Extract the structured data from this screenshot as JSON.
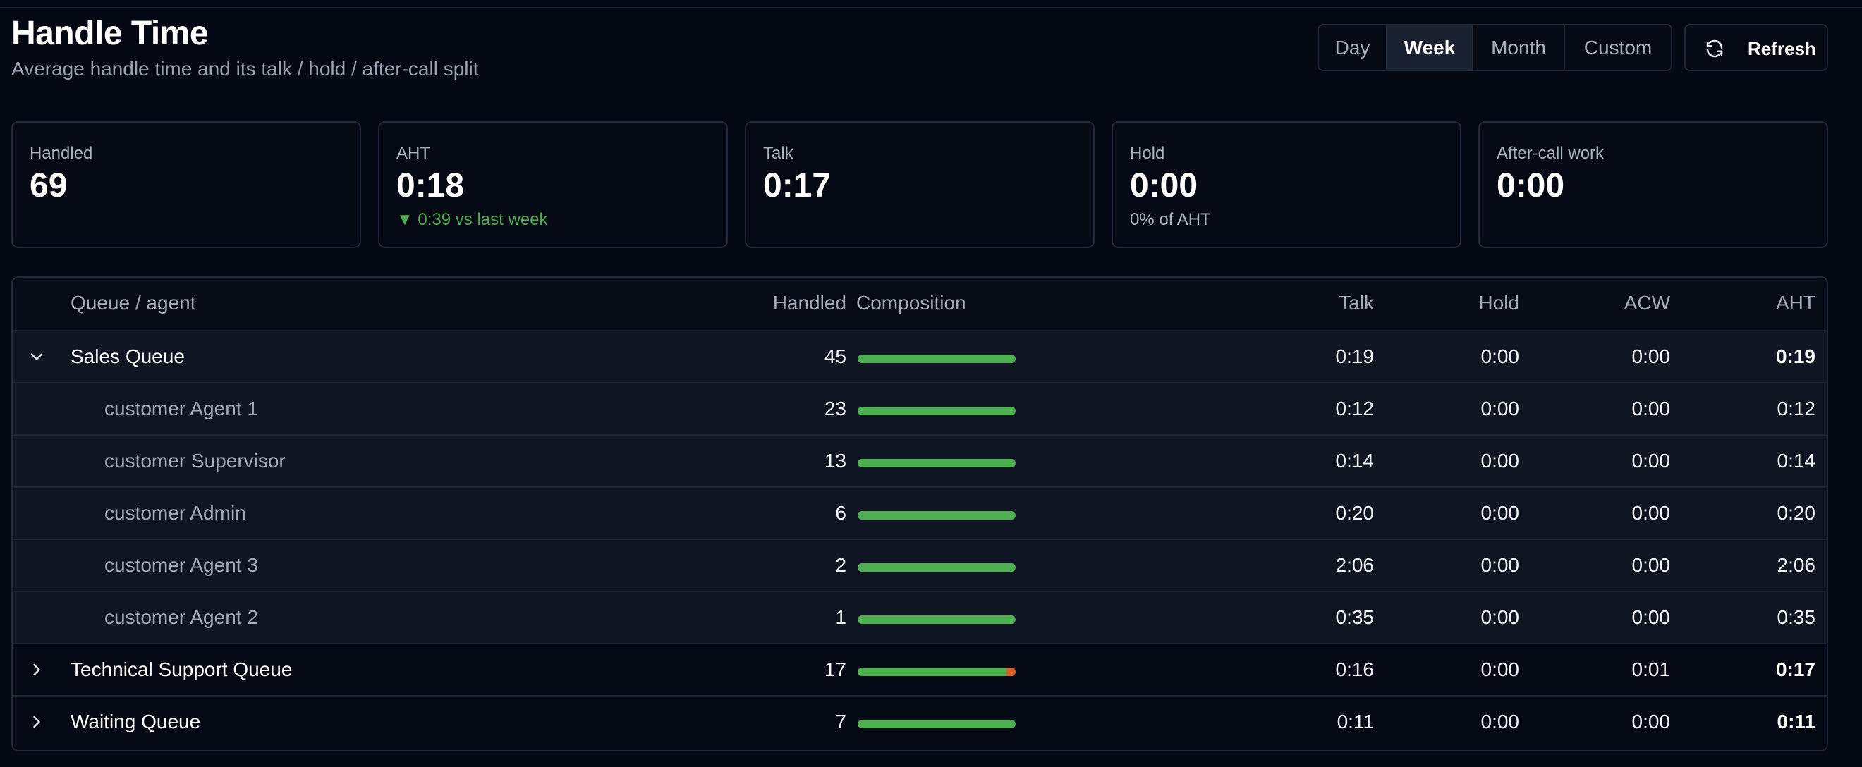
{
  "header": {
    "title": "Handle Time",
    "subtitle": "Average handle time and its talk / hold / after-call split"
  },
  "range": {
    "options": [
      "Day",
      "Week",
      "Month",
      "Custom"
    ],
    "selected": "Week"
  },
  "refresh_label": "Refresh",
  "kpis": [
    {
      "label": "Handled",
      "value": "69",
      "sub": ""
    },
    {
      "label": "AHT",
      "value": "0:18",
      "sub": "▼ 0:39 vs last week"
    },
    {
      "label": "Talk",
      "value": "0:17",
      "sub": ""
    },
    {
      "label": "Hold",
      "value": "0:00",
      "sub": "0% of AHT"
    },
    {
      "label": "After-call work",
      "value": "0:00",
      "sub": ""
    }
  ],
  "table": {
    "columns": [
      "Queue / agent",
      "Handled",
      "Composition",
      "Talk",
      "Hold",
      "ACW",
      "AHT"
    ],
    "rows": [
      {
        "type": "queue",
        "expanded": true,
        "name": "Sales Queue",
        "handled": "45",
        "talk": "0:19",
        "hold": "0:00",
        "acw": "0:00",
        "aht": "0:19",
        "composition": {
          "talk": 1.0,
          "hold": 0.0,
          "acw": 0.0
        }
      },
      {
        "type": "agent",
        "name": "customer Agent 1",
        "handled": "23",
        "talk": "0:12",
        "hold": "0:00",
        "acw": "0:00",
        "aht": "0:12",
        "composition": {
          "talk": 1.0,
          "hold": 0.0,
          "acw": 0.0
        }
      },
      {
        "type": "agent",
        "name": "customer Supervisor",
        "handled": "13",
        "talk": "0:14",
        "hold": "0:00",
        "acw": "0:00",
        "aht": "0:14",
        "composition": {
          "talk": 1.0,
          "hold": 0.0,
          "acw": 0.0
        }
      },
      {
        "type": "agent",
        "name": "customer Admin",
        "handled": "6",
        "talk": "0:20",
        "hold": "0:00",
        "acw": "0:00",
        "aht": "0:20",
        "composition": {
          "talk": 1.0,
          "hold": 0.0,
          "acw": 0.0
        }
      },
      {
        "type": "agent",
        "name": "customer Agent 3",
        "handled": "2",
        "talk": "2:06",
        "hold": "0:00",
        "acw": "0:00",
        "aht": "2:06",
        "composition": {
          "talk": 1.0,
          "hold": 0.0,
          "acw": 0.0
        }
      },
      {
        "type": "agent",
        "name": "customer Agent 2",
        "handled": "1",
        "talk": "0:35",
        "hold": "0:00",
        "acw": "0:00",
        "aht": "0:35",
        "composition": {
          "talk": 1.0,
          "hold": 0.0,
          "acw": 0.0
        }
      },
      {
        "type": "queue",
        "expanded": false,
        "name": "Technical Support Queue",
        "handled": "17",
        "talk": "0:16",
        "hold": "0:00",
        "acw": "0:01",
        "aht": "0:17",
        "composition": {
          "talk": 0.94,
          "hold": 0.0,
          "acw": 0.06
        }
      },
      {
        "type": "queue",
        "expanded": false,
        "name": "Waiting Queue",
        "handled": "7",
        "talk": "0:11",
        "hold": "0:00",
        "acw": "0:00",
        "aht": "0:11",
        "composition": {
          "talk": 1.0,
          "hold": 0.0,
          "acw": 0.0
        }
      }
    ]
  },
  "colors": {
    "talk": "#4caf50",
    "hold": "#e0a030",
    "acw": "#d9622b",
    "good": "#4caf50"
  }
}
